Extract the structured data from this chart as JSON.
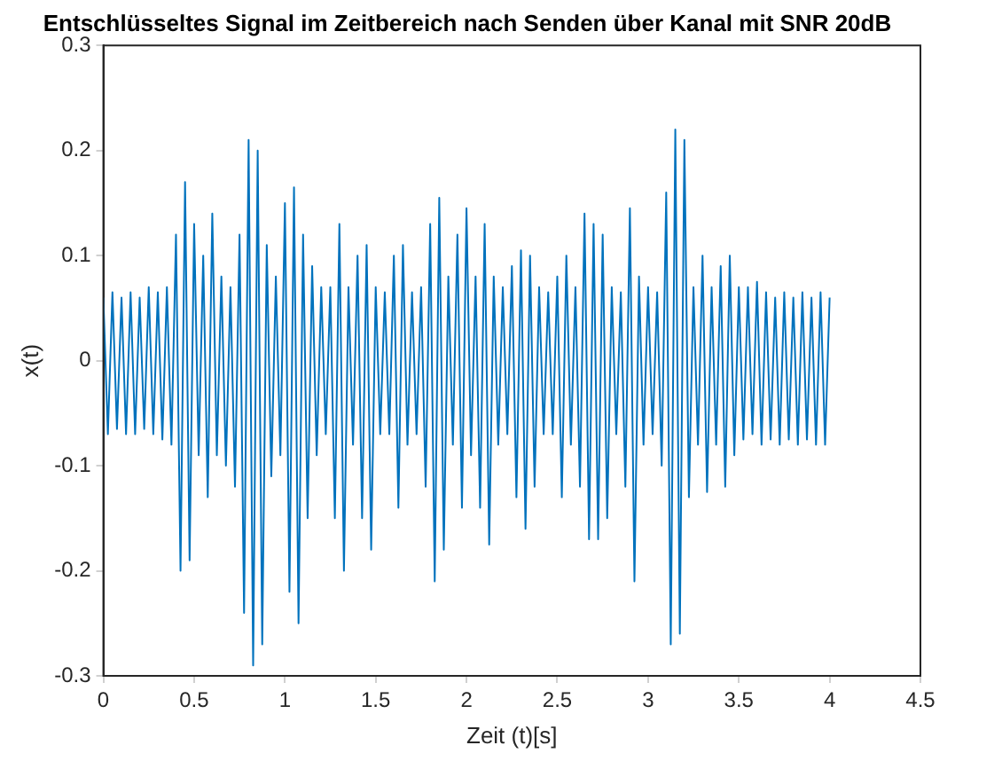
{
  "chart_data": {
    "type": "line",
    "title": "Entschlüsseltes Signal im Zeitbereich nach Senden über Kanal mit SNR 20dB",
    "xlabel": "Zeit (t)[s]",
    "ylabel": "x(t)",
    "xlim": [
      0,
      4.5
    ],
    "xticks": [
      0,
      0.5,
      1,
      1.5,
      2,
      2.5,
      3,
      3.5,
      4,
      4.5
    ],
    "ylim": [
      -0.3,
      0.3
    ],
    "yticks": [
      -0.3,
      -0.2,
      -0.1,
      0,
      0.1,
      0.2,
      0.3
    ],
    "grid": false,
    "legend": false,
    "marker": "none",
    "line_style": "solid",
    "series": [
      {
        "color": "#0072bd",
        "x": [
          0,
          0.025,
          0.05,
          0.075,
          0.1,
          0.125,
          0.15,
          0.175,
          0.2,
          0.225,
          0.25,
          0.275,
          0.3,
          0.325,
          0.35,
          0.375,
          0.4,
          0.425,
          0.45,
          0.475,
          0.5,
          0.525,
          0.55,
          0.575,
          0.6,
          0.625,
          0.65,
          0.675,
          0.7,
          0.725,
          0.75,
          0.775,
          0.8,
          0.825,
          0.85,
          0.875,
          0.9,
          0.925,
          0.95,
          0.975,
          1,
          1.025,
          1.05,
          1.075,
          1.1,
          1.125,
          1.15,
          1.175,
          1.2,
          1.225,
          1.25,
          1.275,
          1.3,
          1.325,
          1.35,
          1.375,
          1.4,
          1.425,
          1.45,
          1.475,
          1.5,
          1.525,
          1.55,
          1.575,
          1.6,
          1.625,
          1.65,
          1.675,
          1.7,
          1.725,
          1.75,
          1.775,
          1.8,
          1.825,
          1.85,
          1.875,
          1.9,
          1.925,
          1.95,
          1.975,
          2,
          2.025,
          2.05,
          2.075,
          2.1,
          2.125,
          2.15,
          2.175,
          2.2,
          2.225,
          2.25,
          2.275,
          2.3,
          2.325,
          2.35,
          2.375,
          2.4,
          2.425,
          2.45,
          2.475,
          2.5,
          2.525,
          2.55,
          2.575,
          2.6,
          2.625,
          2.65,
          2.675,
          2.7,
          2.725,
          2.75,
          2.775,
          2.8,
          2.825,
          2.85,
          2.875,
          2.9,
          2.925,
          2.95,
          2.975,
          3,
          3.025,
          3.05,
          3.075,
          3.1,
          3.125,
          3.15,
          3.175,
          3.2,
          3.225,
          3.25,
          3.275,
          3.3,
          3.325,
          3.35,
          3.375,
          3.4,
          3.425,
          3.45,
          3.475,
          3.5,
          3.525,
          3.55,
          3.575,
          3.6,
          3.625,
          3.65,
          3.675,
          3.7,
          3.725,
          3.75,
          3.775,
          3.8,
          3.825,
          3.85,
          3.875,
          3.9,
          3.925,
          3.95,
          3.975,
          4
        ],
        "values": [
          0.06,
          -0.07,
          0.065,
          -0.065,
          0.06,
          -0.07,
          0.065,
          -0.07,
          0.06,
          -0.065,
          0.07,
          -0.07,
          0.065,
          -0.075,
          0.07,
          -0.08,
          0.12,
          -0.2,
          0.17,
          -0.19,
          0.13,
          -0.09,
          0.1,
          -0.13,
          0.14,
          -0.09,
          0.08,
          -0.1,
          0.07,
          -0.12,
          0.12,
          -0.24,
          0.21,
          -0.29,
          0.2,
          -0.27,
          0.11,
          -0.11,
          0.08,
          -0.09,
          0.15,
          -0.22,
          0.165,
          -0.25,
          0.12,
          -0.15,
          0.09,
          -0.09,
          0.07,
          -0.07,
          0.07,
          -0.15,
          0.13,
          -0.2,
          0.07,
          -0.08,
          0.1,
          -0.15,
          0.11,
          -0.18,
          0.07,
          -0.07,
          0.065,
          -0.07,
          0.1,
          -0.14,
          0.11,
          -0.08,
          0.065,
          -0.07,
          0.07,
          -0.12,
          0.13,
          -0.21,
          0.155,
          -0.18,
          0.08,
          -0.08,
          0.12,
          -0.14,
          0.145,
          -0.09,
          0.08,
          -0.14,
          0.13,
          -0.175,
          0.08,
          -0.08,
          0.07,
          -0.07,
          0.09,
          -0.13,
          0.105,
          -0.16,
          0.1,
          -0.12,
          0.07,
          -0.07,
          0.065,
          -0.07,
          0.08,
          -0.13,
          0.1,
          -0.08,
          0.07,
          -0.12,
          0.14,
          -0.17,
          0.13,
          -0.17,
          0.12,
          -0.15,
          0.07,
          -0.07,
          0.065,
          -0.12,
          0.145,
          -0.21,
          0.08,
          -0.08,
          0.07,
          -0.07,
          0.065,
          -0.1,
          0.16,
          -0.27,
          0.22,
          -0.26,
          0.21,
          -0.13,
          0.07,
          -0.08,
          0.1,
          -0.125,
          0.07,
          -0.08,
          0.09,
          -0.12,
          0.1,
          -0.09,
          0.07,
          -0.075,
          0.07,
          -0.07,
          0.075,
          -0.08,
          0.065,
          -0.075,
          0.06,
          -0.08,
          0.065,
          -0.075,
          0.06,
          -0.08,
          0.065,
          -0.075,
          0.06,
          -0.08,
          0.065,
          -0.08,
          0.06
        ]
      }
    ]
  }
}
